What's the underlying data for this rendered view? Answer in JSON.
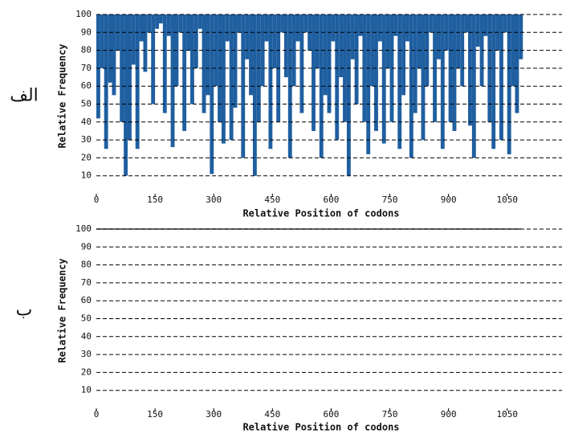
{
  "chart_data": [
    {
      "type": "bar",
      "label": "الف",
      "ylabel": "Relative Frequency",
      "xlabel": "Relative Position of codons",
      "color": "#1f5fa0",
      "grid": true,
      "xlim": [
        0,
        1190
      ],
      "xticks": [
        0,
        150,
        300,
        450,
        600,
        750,
        900,
        1050
      ],
      "ylim": [
        0,
        100
      ],
      "yticks": [
        10,
        20,
        30,
        40,
        50,
        60,
        70,
        80,
        90,
        100
      ],
      "x": [
        5,
        15,
        25,
        35,
        45,
        55,
        65,
        75,
        85,
        95,
        105,
        115,
        125,
        135,
        145,
        155,
        165,
        175,
        185,
        195,
        205,
        215,
        225,
        235,
        245,
        255,
        265,
        275,
        285,
        295,
        305,
        315,
        325,
        335,
        345,
        355,
        365,
        375,
        385,
        395,
        405,
        415,
        425,
        435,
        445,
        455,
        465,
        475,
        485,
        495,
        505,
        515,
        525,
        535,
        545,
        555,
        565,
        575,
        585,
        595,
        605,
        615,
        625,
        635,
        645,
        655,
        665,
        675,
        685,
        695,
        705,
        715,
        725,
        735,
        745,
        755,
        765,
        775,
        785,
        795,
        805,
        815,
        825,
        835,
        845,
        855,
        865,
        875,
        885,
        895,
        905,
        915,
        925,
        935,
        945,
        955,
        965,
        975,
        985,
        995,
        1005,
        1015,
        1025,
        1035,
        1045,
        1055,
        1065,
        1075,
        1085
      ],
      "values": [
        42,
        70,
        25,
        62,
        55,
        80,
        40,
        10,
        30,
        72,
        25,
        85,
        68,
        90,
        50,
        92,
        95,
        45,
        88,
        26,
        60,
        90,
        35,
        80,
        50,
        70,
        92,
        45,
        55,
        11,
        60,
        40,
        28,
        85,
        30,
        48,
        90,
        20,
        75,
        55,
        10,
        40,
        60,
        85,
        25,
        70,
        40,
        90,
        65,
        20,
        60,
        85,
        45,
        90,
        80,
        35,
        70,
        20,
        55,
        45,
        85,
        30,
        65,
        40,
        10,
        75,
        50,
        88,
        40,
        22,
        60,
        35,
        85,
        28,
        70,
        40,
        88,
        25,
        55,
        85,
        20,
        45,
        70,
        30,
        60,
        90,
        40,
        75,
        25,
        80,
        40,
        35,
        70,
        60,
        90,
        38,
        20,
        82,
        60,
        88,
        40,
        25,
        80,
        30,
        90,
        22,
        60,
        45,
        75
      ]
    },
    {
      "type": "line",
      "label": "ب",
      "ylabel": "Relative Frequency",
      "xlabel": "Relative Position of codons",
      "color": "#333333",
      "grid": true,
      "xlim": [
        0,
        1190
      ],
      "xticks": [
        0,
        150,
        300,
        450,
        600,
        750,
        900,
        1050
      ],
      "ylim": [
        0,
        100
      ],
      "yticks": [
        10,
        20,
        30,
        40,
        50,
        60,
        70,
        80,
        90,
        100
      ],
      "x": [
        0,
        1085
      ],
      "values": [
        100,
        100
      ]
    }
  ]
}
